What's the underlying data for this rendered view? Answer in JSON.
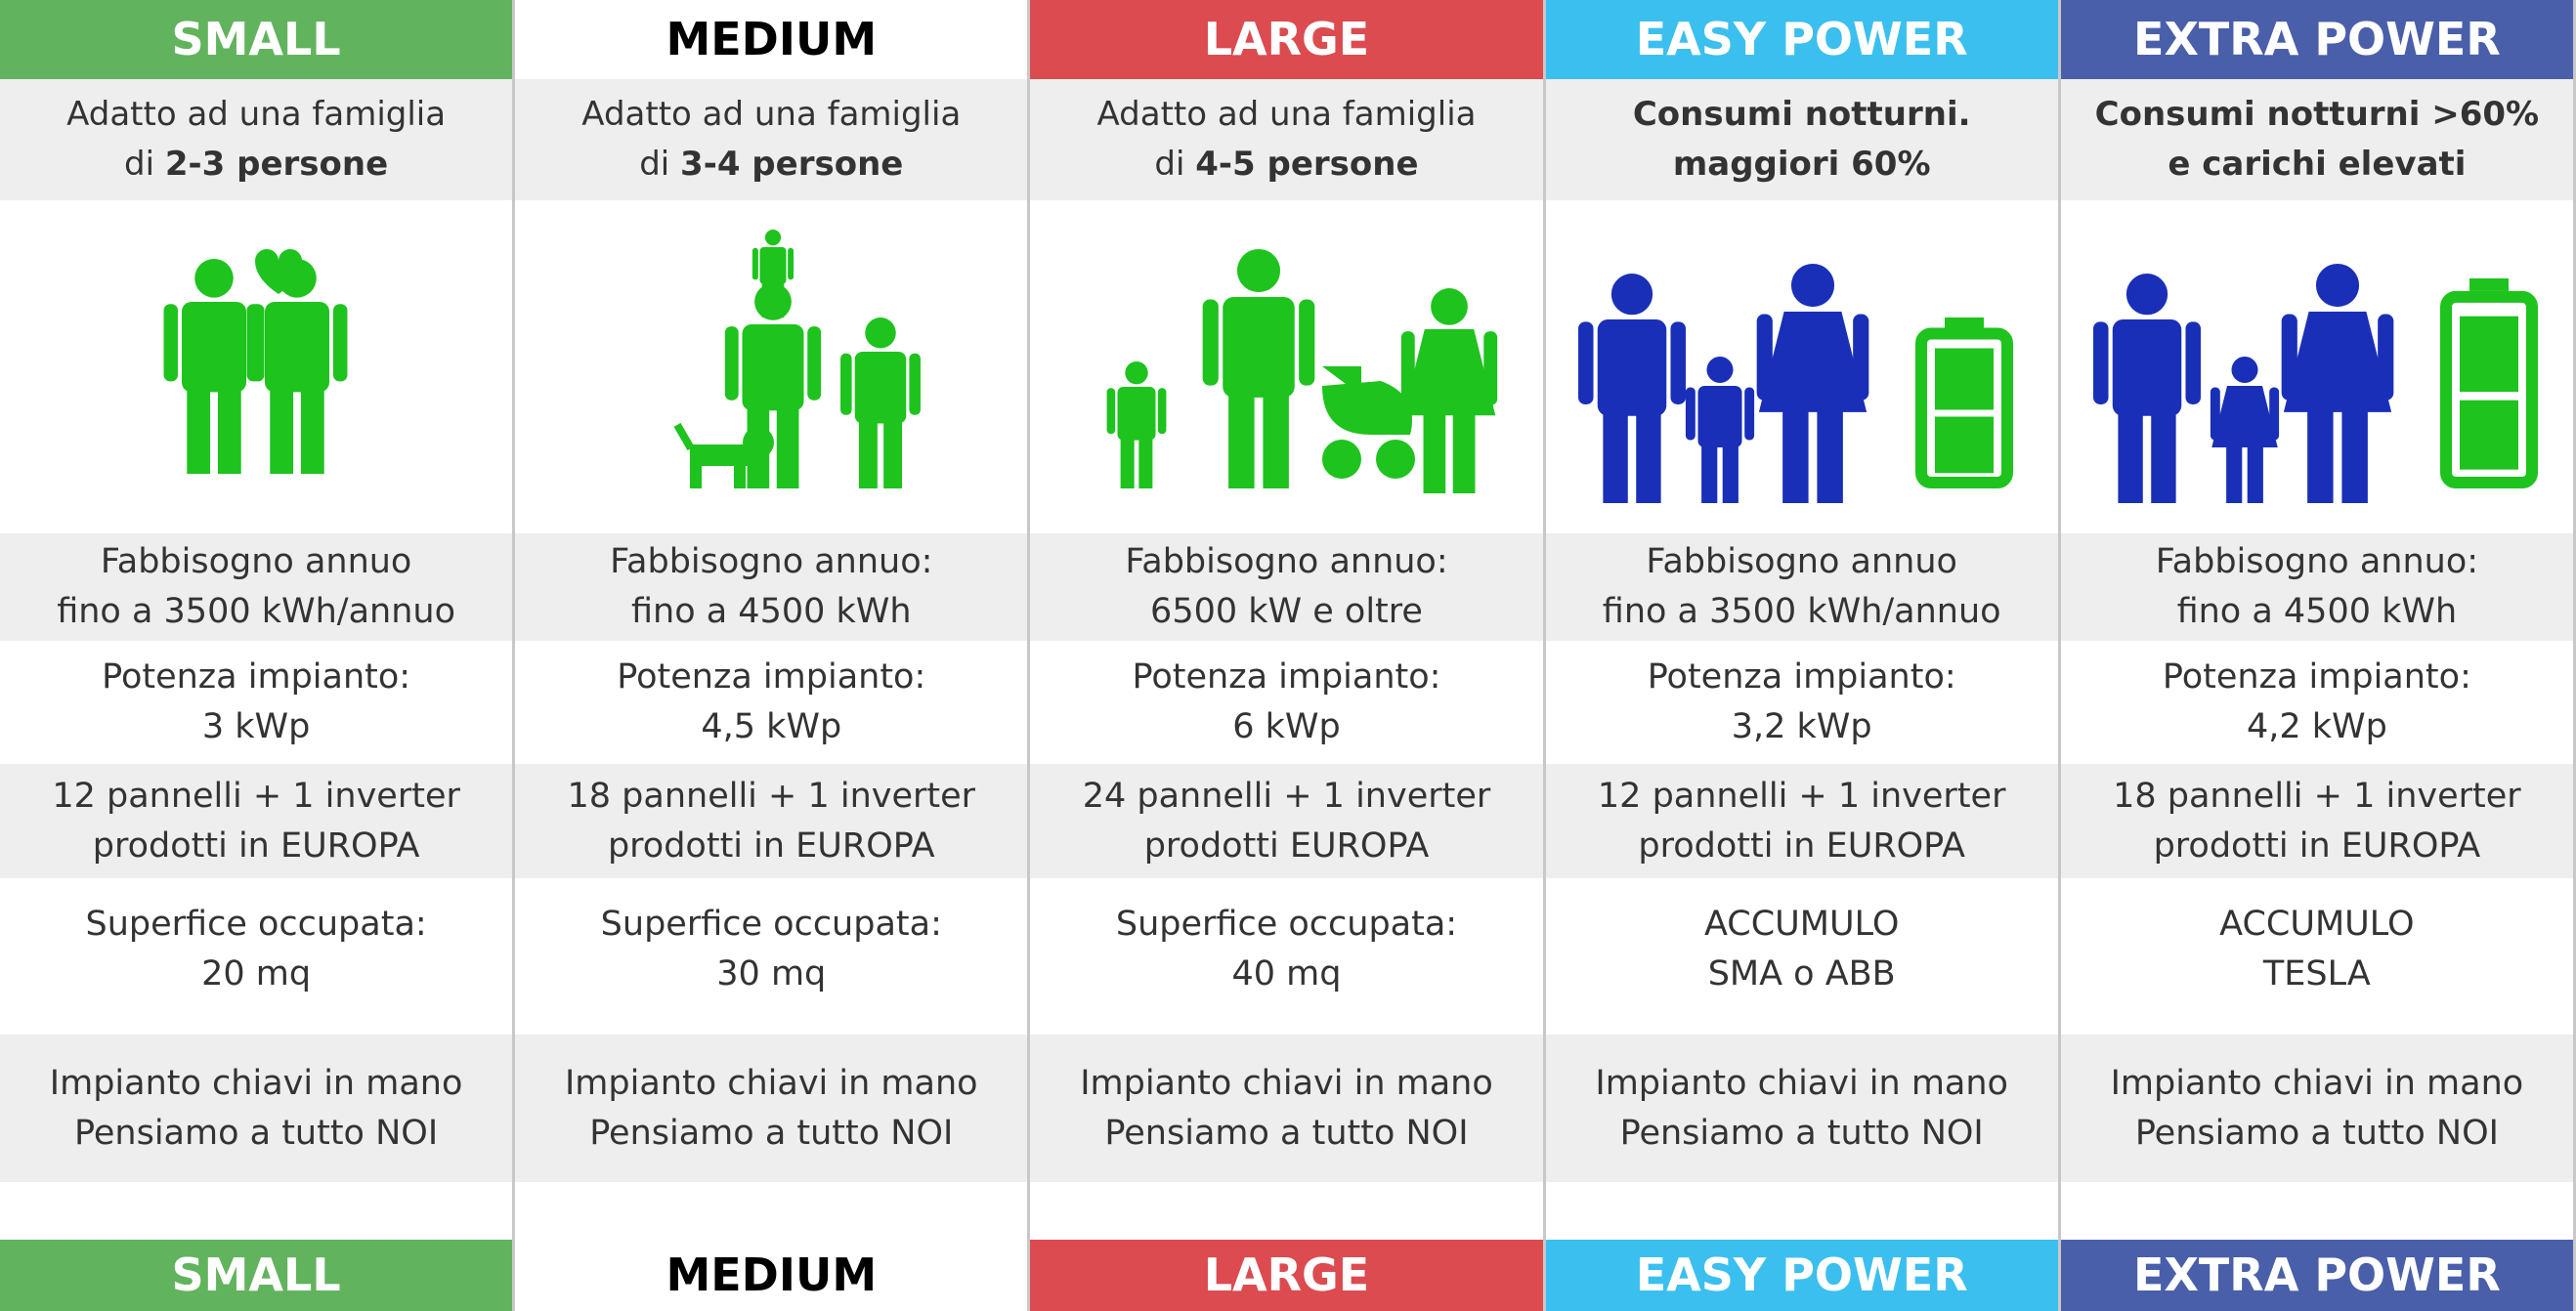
{
  "columns": [
    {
      "header": "SMALL",
      "header_color": "#62b35e",
      "header_text_color": "#ffffff",
      "description": [
        [
          {
            "text": "Adatto ad una famiglia"
          }
        ],
        [
          {
            "text": "di "
          },
          {
            "text": "2-3 persone",
            "bold": true
          }
        ]
      ],
      "fabbisogno": [
        "Fabbisogno annuo",
        "fino a 3500 kWh/annuo"
      ],
      "potenza": [
        "Potenza impianto:",
        "3 kWp"
      ],
      "pannelli": [
        "12 pannelli + 1 inverter",
        "prodotti in EUROPA"
      ],
      "superficie": [
        "Superfice occupata:",
        "20 mq"
      ],
      "impianto": [
        "Impianto chiavi in mano",
        "Pensiamo a tutto NOI"
      ]
    },
    {
      "header": "MEDIUM",
      "header_color": "#ffffff",
      "header_text_color": "#000000",
      "description": [
        [
          {
            "text": "Adatto ad una famiglia"
          }
        ],
        [
          {
            "text": "di "
          },
          {
            "text": "3-4 persone",
            "bold": true
          }
        ]
      ],
      "fabbisogno": [
        "Fabbisogno annuo:",
        "fino a 4500 kWh"
      ],
      "potenza": [
        "Potenza impianto:",
        "4,5 kWp"
      ],
      "pannelli": [
        "18 pannelli + 1 inverter",
        "prodotti in EUROPA"
      ],
      "superficie": [
        "Superfice occupata:",
        "30 mq"
      ],
      "impianto": [
        "Impianto chiavi in mano",
        "Pensiamo a tutto NOI"
      ]
    },
    {
      "header": "LARGE",
      "header_color": "#db4b50",
      "header_text_color": "#ffffff",
      "description": [
        [
          {
            "text": "Adatto ad una famiglia"
          }
        ],
        [
          {
            "text": "di "
          },
          {
            "text": "4-5 persone",
            "bold": true
          }
        ]
      ],
      "fabbisogno": [
        "Fabbisogno annuo:",
        "6500 kW e oltre"
      ],
      "potenza": [
        "Potenza impianto:",
        "6 kWp"
      ],
      "pannelli": [
        "24 pannelli + 1 inverter",
        "prodotti EUROPA"
      ],
      "superficie": [
        "Superfice occupata:",
        "40 mq"
      ],
      "impianto": [
        "Impianto chiavi in mano",
        "Pensiamo a tutto NOI"
      ]
    },
    {
      "header": "EASY POWER",
      "header_color": "#3bbfee",
      "header_text_color": "#ffffff",
      "description": [
        [
          {
            "text": "Consumi notturni.",
            "bold": true
          }
        ],
        [
          {
            "text": "maggiori 60%",
            "bold": true
          }
        ]
      ],
      "fabbisogno": [
        "Fabbisogno annuo",
        "fino a 3500 kWh/annuo"
      ],
      "potenza": [
        "Potenza impianto:",
        "3,2 kWp"
      ],
      "pannelli": [
        "12 pannelli + 1 inverter",
        "prodotti in EUROPA"
      ],
      "superficie": [
        "ACCUMULO",
        "SMA o ABB"
      ],
      "impianto": [
        "Impianto chiavi in mano",
        "Pensiamo a tutto NOI"
      ]
    },
    {
      "header": "EXTRA POWER",
      "header_color": "#4a5faa",
      "header_text_color": "#ffffff",
      "description": [
        [
          {
            "text": "Consumi notturni >60%",
            "bold": true
          }
        ],
        [
          {
            "text": "e carichi elevati",
            "bold": true
          }
        ]
      ],
      "fabbisogno": [
        "Fabbisogno annuo:",
        "fino a 4500 kWh"
      ],
      "potenza": [
        "Potenza impianto:",
        "4,2 kWp"
      ],
      "pannelli": [
        "18 pannelli + 1 inverter",
        "prodotti in EUROPA"
      ],
      "superficie": [
        "ACCUMULO",
        "TESLA"
      ],
      "impianto": [
        "Impianto chiavi in mano",
        "Pensiamo a tutto NOI"
      ]
    }
  ]
}
